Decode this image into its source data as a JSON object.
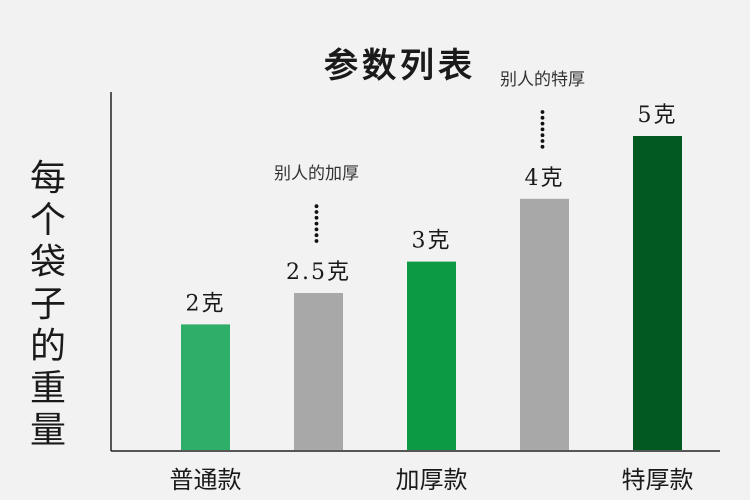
{
  "chart_data": {
    "type": "bar",
    "title": "参数列表",
    "ylabel": "每个袋子的重量",
    "xlabel": "",
    "ylim": [
      0,
      5.8
    ],
    "grid": false,
    "bars": [
      {
        "value": 2,
        "label": "2克",
        "tick": "普通款",
        "color": "#2eae68"
      },
      {
        "value": 2.5,
        "label": "2.5克",
        "tick": "",
        "color": "#a8a8a8"
      },
      {
        "value": 3,
        "label": "3克",
        "tick": "加厚款",
        "color": "#0c9a45"
      },
      {
        "value": 4,
        "label": "4克",
        "tick": "",
        "color": "#a8a8a8"
      },
      {
        "value": 5,
        "label": "5克",
        "tick": "特厚款",
        "color": "#035a20"
      }
    ],
    "annotations": [
      {
        "bar": 1,
        "text": "别人的加厚"
      },
      {
        "bar": 3,
        "text": "别人的特厚"
      }
    ]
  }
}
